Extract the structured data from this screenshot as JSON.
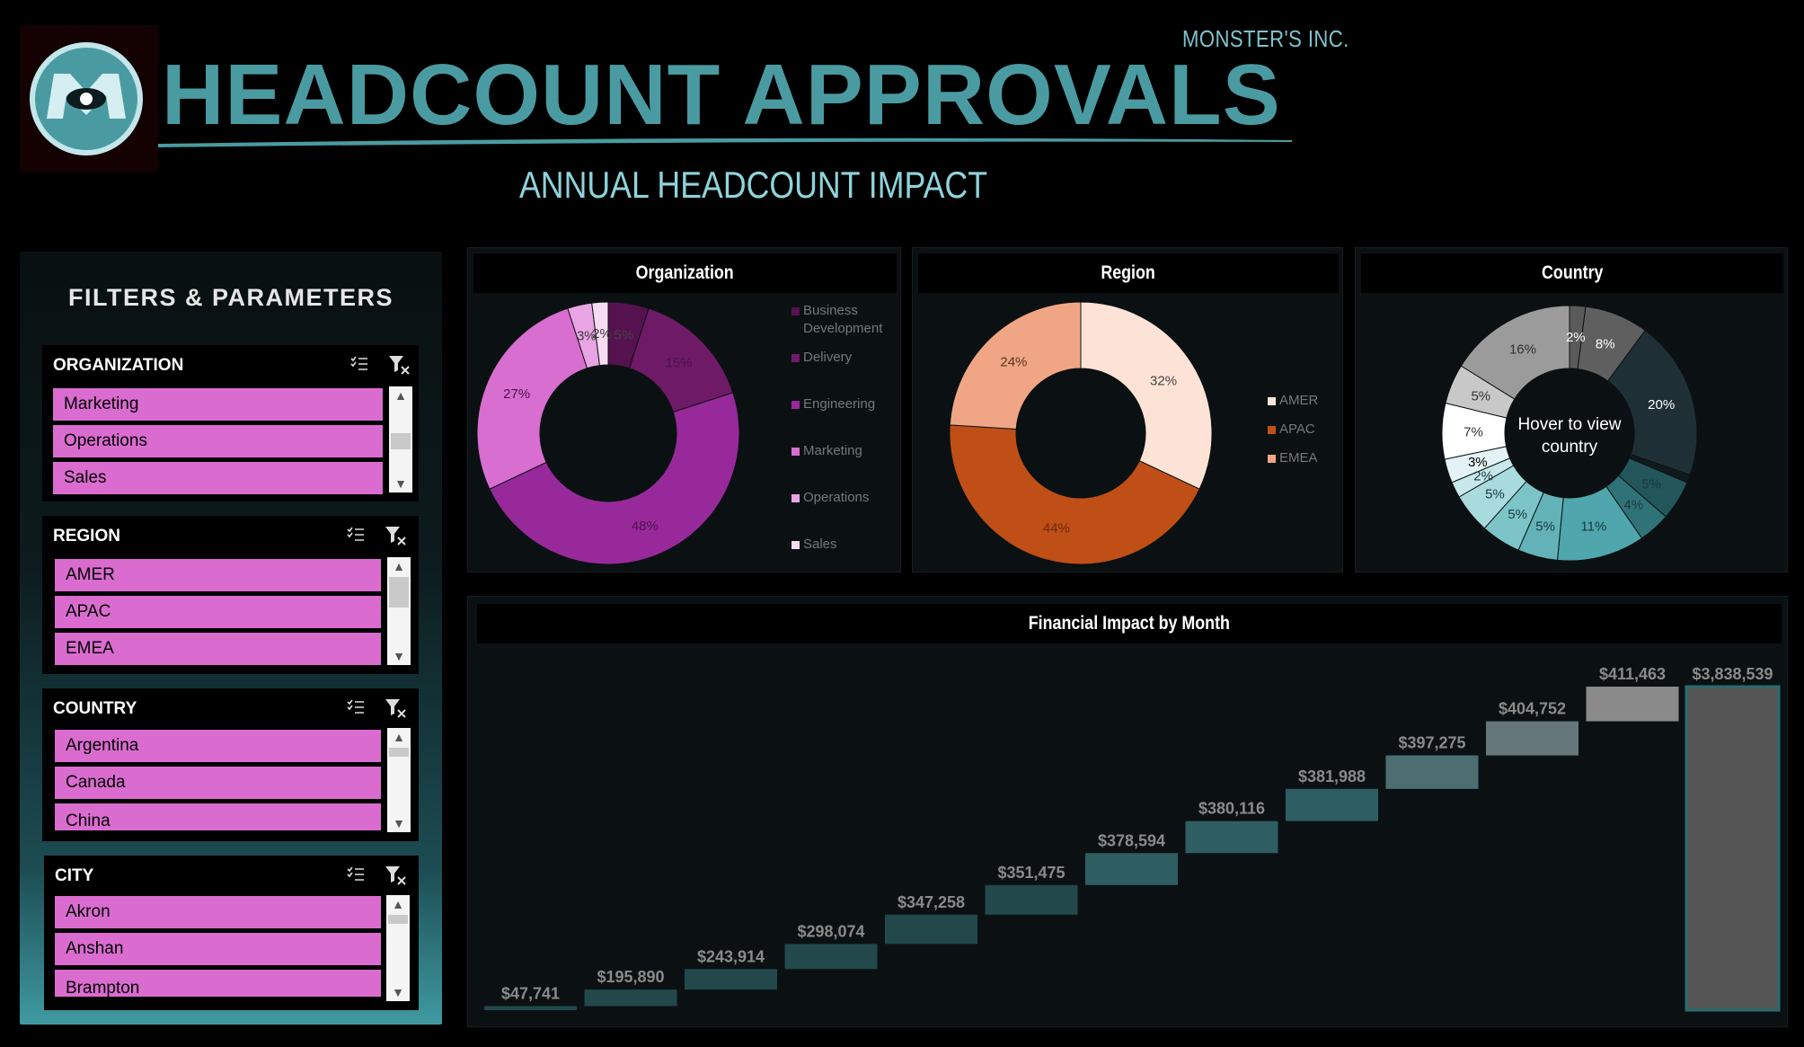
{
  "header": {
    "company": "MONSTER'S INC.",
    "title": "HEADCOUNT APPROVALS",
    "subtitle": "ANNUAL HEADCOUNT IMPACT"
  },
  "filters": {
    "title": "FILTERS & PARAMETERS",
    "slicers": [
      {
        "label": "ORGANIZATION",
        "items": [
          "Marketing",
          "Operations",
          "Sales"
        ]
      },
      {
        "label": "REGION",
        "items": [
          "AMER",
          "APAC",
          "EMEA"
        ]
      },
      {
        "label": "COUNTRY",
        "items": [
          "Argentina",
          "Canada",
          "China"
        ]
      },
      {
        "label": "CITY",
        "items": [
          "Akron",
          "Anshan",
          "Brampton"
        ]
      }
    ]
  },
  "icons": {
    "multiselect": "multi-select-icon",
    "clear_filter": "clear-filter-icon",
    "scroll_up": "▲",
    "scroll_down": "▼"
  },
  "colors": {
    "title": "#4a9ba1",
    "slicer_item": "#da6cd0",
    "org": [
      "#55124f",
      "#6f1a67",
      "#98299b",
      "#d86ed0",
      "#e9a5e3",
      "#f6dcf3"
    ],
    "region": [
      "#fde3d6",
      "#bf4f16",
      "#f0a684"
    ],
    "country": [
      "#5a5a5a",
      "#1e3035",
      "#23565b",
      "#3f8e94",
      "#4fa6ac",
      "#7cc4c8",
      "#a9dade",
      "#c8e7ea",
      "#e3f3f5",
      "#f7fcfd",
      "#ffffff",
      "#c8c8c8",
      "#9b9b9b",
      "#777777"
    ]
  },
  "charts": {
    "organization": {
      "title": "Organization",
      "legend": [
        "Business Development",
        "Delivery",
        "Engineering",
        "Marketing",
        "Operations",
        "Sales"
      ],
      "labels": [
        "5%",
        "15%",
        "48%",
        "27%",
        "3%",
        "2%"
      ]
    },
    "region": {
      "title": "Region",
      "legend": [
        "AMER",
        "APAC",
        "EMEA"
      ],
      "labels": [
        "32%",
        "44%",
        "24%"
      ]
    },
    "country": {
      "title": "Country",
      "center_text": [
        "Hover to view",
        "country"
      ],
      "labels": [
        "2%",
        "8%",
        "20%",
        "5%",
        "4%",
        "11%",
        "5%",
        "5%",
        "5%",
        "2%",
        "3%",
        "7%",
        "5%",
        "16%"
      ]
    },
    "waterfall": {
      "title": "Financial Impact by Month"
    }
  },
  "chart_data": [
    {
      "type": "pie",
      "title": "Organization",
      "categories": [
        "Business Development",
        "Delivery",
        "Engineering",
        "Marketing",
        "Operations",
        "Sales"
      ],
      "values": [
        5,
        15,
        48,
        27,
        3,
        2
      ]
    },
    {
      "type": "pie",
      "title": "Region",
      "categories": [
        "AMER",
        "APAC",
        "EMEA"
      ],
      "values": [
        32,
        44,
        24
      ]
    },
    {
      "type": "pie",
      "title": "Country",
      "values": [
        2,
        8,
        20,
        1,
        5,
        4,
        11,
        5,
        5,
        5,
        2,
        3,
        7,
        5,
        16
      ]
    },
    {
      "type": "bar",
      "subtype": "waterfall",
      "title": "Financial Impact by Month",
      "labels": [
        "$47,741",
        "$195,890",
        "$243,914",
        "$298,074",
        "$347,258",
        "$351,475",
        "$378,594",
        "$380,116",
        "$381,988",
        "$397,275",
        "$404,752",
        "$411,463",
        "$3,838,539"
      ],
      "values": [
        47741,
        195890,
        243914,
        298074,
        347258,
        351475,
        378594,
        380116,
        381988,
        397275,
        404752,
        411463,
        3838539
      ],
      "total_index": 12
    }
  ]
}
